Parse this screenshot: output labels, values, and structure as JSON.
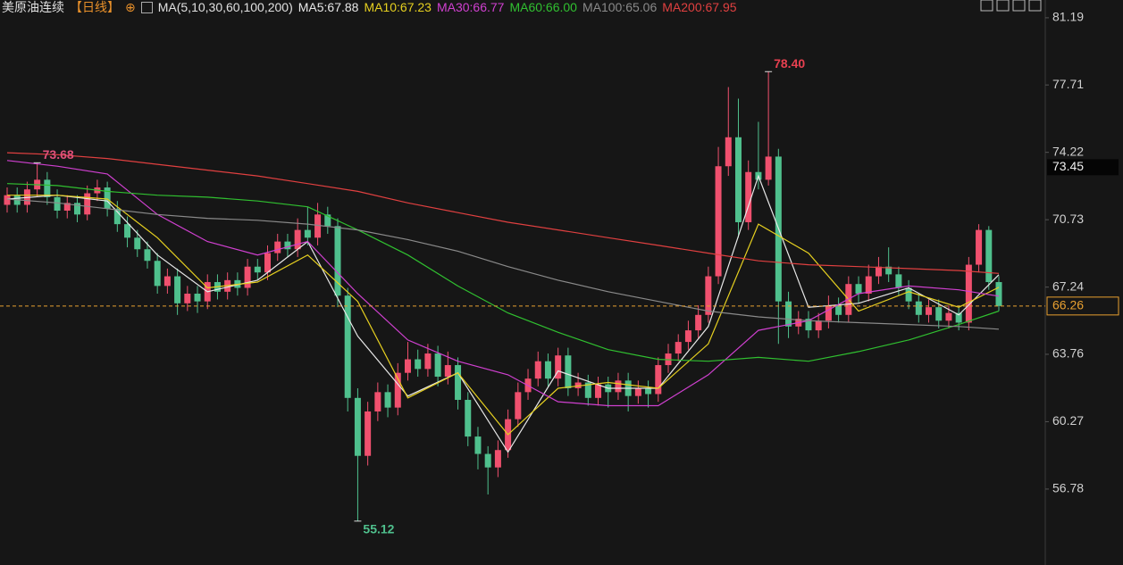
{
  "chart_data": {
    "type": "candlestick",
    "instrument": "美原油连续",
    "period": "【日线】",
    "indicator": "MA(5,10,30,60,100,200)",
    "up_color": "#f0506e",
    "down_color": "#4fc08d",
    "ylim": [
      53.91,
      82.11
    ],
    "yticks": [
      56.78,
      60.27,
      63.76,
      67.24,
      70.73,
      74.22,
      77.71,
      81.19
    ],
    "open": [
      71.5,
      72.0,
      71.5,
      72.3,
      72.8,
      71.9,
      71.2,
      71.6,
      71.0,
      72.1,
      72.4,
      71.3,
      70.5,
      69.8,
      69.2,
      68.6,
      67.3,
      67.8,
      66.4,
      66.9,
      66.5,
      67.5,
      67.0,
      67.6,
      67.2,
      68.3,
      68.0,
      69.0,
      69.6,
      69.2,
      70.2,
      69.8,
      71.0,
      70.4,
      66.8,
      61.5,
      58.5,
      60.8,
      61.8,
      61.0,
      62.8,
      63.5,
      63.0,
      63.8,
      62.6,
      63.2,
      61.4,
      59.5,
      58.6,
      57.9,
      58.8,
      60.4,
      61.8,
      62.5,
      63.4,
      62.5,
      63.7,
      62.0,
      62.3,
      61.5,
      62.2,
      61.8,
      62.4,
      61.6,
      62.0,
      61.7,
      63.2,
      63.8,
      64.4,
      65.0,
      65.8,
      67.8,
      73.5,
      75.0,
      70.6,
      73.2,
      72.8,
      74.0,
      66.5,
      65.2,
      65.6,
      65.0,
      65.5,
      66.3,
      65.8,
      67.4,
      66.9,
      67.8,
      68.3,
      67.9,
      67.2,
      66.5,
      65.8,
      66.2,
      65.5,
      65.9,
      65.4,
      68.4,
      70.2,
      67.5
    ],
    "high": [
      72.4,
      72.4,
      72.7,
      73.68,
      73.2,
      72.3,
      72.0,
      72.0,
      72.5,
      72.8,
      72.7,
      71.7,
      70.9,
      70.2,
      69.6,
      69.0,
      68.2,
      68.2,
      67.3,
      67.3,
      67.9,
      67.9,
      68.0,
      68.0,
      68.7,
      68.7,
      69.4,
      70.0,
      70.0,
      70.8,
      71.4,
      71.6,
      71.4,
      70.8,
      67.2,
      62.0,
      61.3,
      62.3,
      62.2,
      63.3,
      64.4,
      64.0,
      64.3,
      64.2,
      63.9,
      63.6,
      61.8,
      60.0,
      59.0,
      59.3,
      60.9,
      62.3,
      63.0,
      63.9,
      63.8,
      64.1,
      64.1,
      62.8,
      62.7,
      62.6,
      62.6,
      62.8,
      62.8,
      62.4,
      62.4,
      63.6,
      64.3,
      64.8,
      65.5,
      66.3,
      68.3,
      74.5,
      77.6,
      77.0,
      73.8,
      75.8,
      78.4,
      74.4,
      67.0,
      66.0,
      66.0,
      65.9,
      66.8,
      66.7,
      67.8,
      67.8,
      68.4,
      68.8,
      69.3,
      68.3,
      67.6,
      66.9,
      66.6,
      66.6,
      66.3,
      66.3,
      68.8,
      70.5,
      70.4,
      67.8
    ],
    "low": [
      71.1,
      71.1,
      71.1,
      71.9,
      71.5,
      70.8,
      70.8,
      70.6,
      70.7,
      71.7,
      70.9,
      70.1,
      69.3,
      68.8,
      68.2,
      66.9,
      66.9,
      65.8,
      66.0,
      65.9,
      66.1,
      66.6,
      66.6,
      66.8,
      66.8,
      67.6,
      67.6,
      68.6,
      68.8,
      68.8,
      69.4,
      69.4,
      70.0,
      66.2,
      60.8,
      55.12,
      58.0,
      60.3,
      60.5,
      60.6,
      62.4,
      62.6,
      62.6,
      62.1,
      62.2,
      60.9,
      59.0,
      57.8,
      56.5,
      57.4,
      58.4,
      60.0,
      61.4,
      62.1,
      62.1,
      62.1,
      61.6,
      61.6,
      61.1,
      61.1,
      61.0,
      61.4,
      60.8,
      61.2,
      61.0,
      61.3,
      62.8,
      63.4,
      64.0,
      64.6,
      65.4,
      67.4,
      73.0,
      69.8,
      70.2,
      72.3,
      72.5,
      64.3,
      64.6,
      64.8,
      64.6,
      64.6,
      65.1,
      65.4,
      65.4,
      66.4,
      66.5,
      67.4,
      67.5,
      66.8,
      66.1,
      65.4,
      65.4,
      65.1,
      65.1,
      65.0,
      65.0,
      68.0,
      67.1,
      66.0
    ],
    "close": [
      72.0,
      71.5,
      72.3,
      72.8,
      71.9,
      71.2,
      71.6,
      71.0,
      72.1,
      72.4,
      71.3,
      70.5,
      69.8,
      69.2,
      68.6,
      67.3,
      67.8,
      66.4,
      66.9,
      66.5,
      67.5,
      67.0,
      67.6,
      67.2,
      68.3,
      68.0,
      69.0,
      69.6,
      69.2,
      70.2,
      69.8,
      71.0,
      70.4,
      66.8,
      61.5,
      58.5,
      60.8,
      61.8,
      61.0,
      62.8,
      63.5,
      63.0,
      63.8,
      62.6,
      63.2,
      61.4,
      59.5,
      58.6,
      57.9,
      58.8,
      60.4,
      61.8,
      62.5,
      63.4,
      62.5,
      63.7,
      62.0,
      62.3,
      61.5,
      62.2,
      61.8,
      62.4,
      61.6,
      62.0,
      61.7,
      63.2,
      63.8,
      64.4,
      65.0,
      65.8,
      67.8,
      73.5,
      75.0,
      70.6,
      73.2,
      72.8,
      74.0,
      66.5,
      65.2,
      65.6,
      65.0,
      65.5,
      66.3,
      65.8,
      67.4,
      66.9,
      67.8,
      68.3,
      67.9,
      67.2,
      66.5,
      65.8,
      66.2,
      65.5,
      65.9,
      65.4,
      68.4,
      70.2,
      67.5,
      66.26
    ],
    "ma_x": [
      0,
      5,
      10,
      15,
      20,
      25,
      30,
      35,
      40,
      45,
      50,
      55,
      60,
      65,
      70,
      75,
      80,
      85,
      90,
      95,
      99
    ],
    "overlays": [
      {
        "name": "MA5:67.88",
        "color": "#e8e8e8",
        "values": [
          71.8,
          72.0,
          71.7,
          68.9,
          67.0,
          67.6,
          69.6,
          64.7,
          61.6,
          62.8,
          58.7,
          62.9,
          62.0,
          62.0,
          65.2,
          73.0,
          66.2,
          66.4,
          67.2,
          65.8,
          67.88
        ]
      },
      {
        "name": "MA10:67.23",
        "color": "#e6d020",
        "values": [
          72.0,
          72.0,
          71.8,
          69.8,
          67.2,
          67.5,
          68.9,
          66.5,
          61.5,
          62.8,
          59.6,
          62.0,
          62.3,
          62.0,
          64.3,
          70.5,
          69.0,
          66.0,
          67.0,
          66.2,
          67.23
        ]
      },
      {
        "name": "MA30:66.77",
        "color": "#d040d0",
        "values": [
          73.8,
          73.5,
          73.1,
          71.0,
          69.6,
          68.9,
          69.6,
          66.9,
          64.5,
          63.4,
          62.7,
          61.3,
          61.1,
          61.1,
          62.7,
          65.0,
          65.5,
          66.9,
          67.3,
          67.1,
          66.77
        ]
      },
      {
        "name": "MA60:66.00",
        "color": "#30c030",
        "values": [
          72.6,
          72.5,
          72.2,
          72.0,
          71.9,
          71.7,
          71.4,
          70.2,
          68.9,
          67.3,
          65.9,
          64.9,
          64.0,
          63.5,
          63.4,
          63.6,
          63.4,
          63.9,
          64.5,
          65.3,
          66.0
        ]
      },
      {
        "name": "MA100:65.06",
        "color": "#8a8a8a",
        "values": [
          71.8,
          71.6,
          71.3,
          71.0,
          70.8,
          70.7,
          70.5,
          70.2,
          69.7,
          69.1,
          68.3,
          67.6,
          67.0,
          66.5,
          66.0,
          65.7,
          65.5,
          65.4,
          65.3,
          65.2,
          65.06
        ]
      },
      {
        "name": "MA200:67.95",
        "color": "#e04040",
        "values": [
          74.2,
          74.1,
          73.9,
          73.6,
          73.3,
          73.0,
          72.6,
          72.2,
          71.6,
          71.1,
          70.6,
          70.2,
          69.8,
          69.4,
          69.0,
          68.6,
          68.4,
          68.3,
          68.2,
          68.1,
          67.95
        ]
      }
    ],
    "extremes": [
      {
        "value": 73.68,
        "label": "73.68",
        "color": "#e0507a",
        "kind": "high"
      },
      {
        "value": 78.4,
        "label": "78.40",
        "color": "#e84050",
        "kind": "high"
      },
      {
        "value": 55.12,
        "label": "55.12",
        "color": "#4fc08d",
        "kind": "low"
      }
    ],
    "reference_price": 73.45,
    "last_price": 66.26,
    "last_color": "#e8a030"
  }
}
